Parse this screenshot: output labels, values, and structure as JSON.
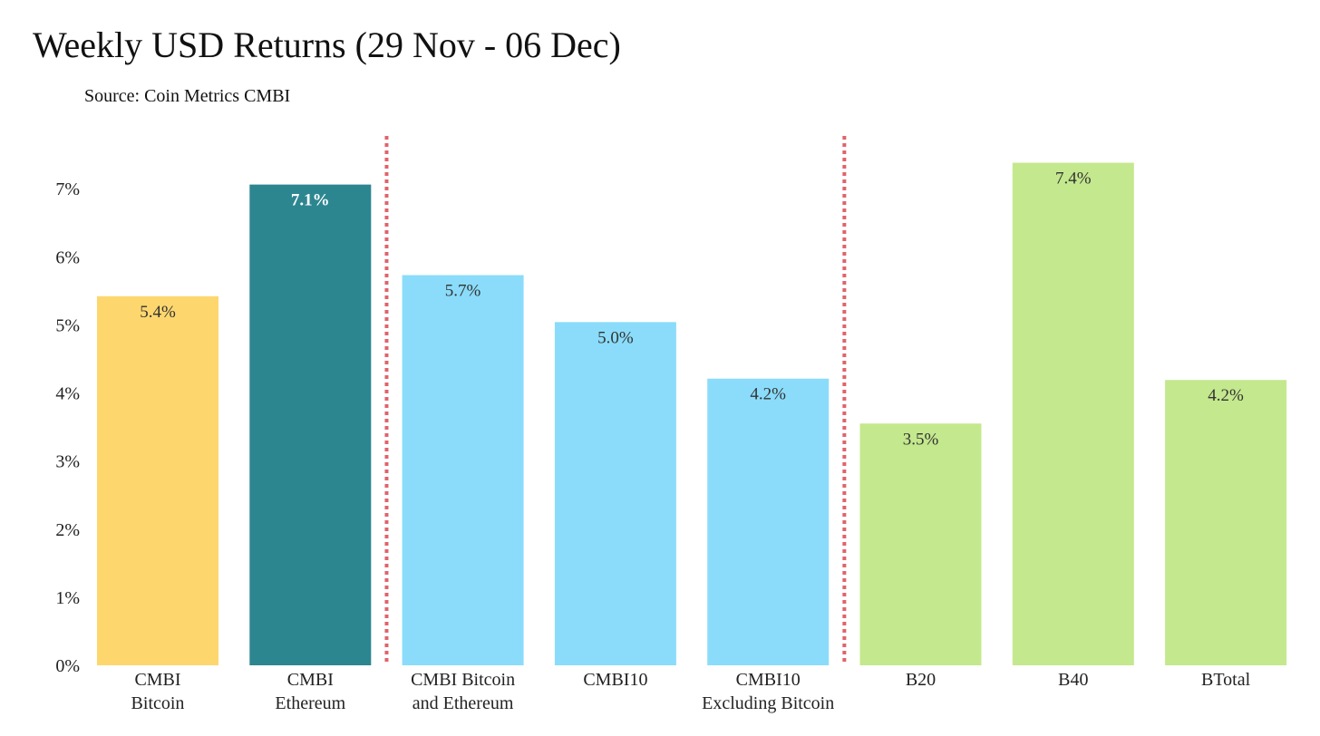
{
  "chart_data": {
    "type": "bar",
    "title": "Weekly USD Returns (29 Nov - 06 Dec)",
    "subtitle": "Source: Coin Metrics CMBI",
    "categories": [
      [
        "CMBI",
        "Bitcoin"
      ],
      [
        "CMBI",
        "Ethereum"
      ],
      [
        "CMBI Bitcoin",
        "and Ethereum"
      ],
      [
        "CMBI10"
      ],
      [
        "CMBI10",
        "Excluding Bitcoin"
      ],
      [
        "B20"
      ],
      [
        "B40"
      ],
      [
        "BTotal"
      ]
    ],
    "values": [
      5.42,
      7.06,
      5.73,
      5.04,
      4.21,
      3.55,
      7.38,
      4.19
    ],
    "data_labels": [
      "5.4%",
      "7.1%",
      "5.7%",
      "5.0%",
      "4.2%",
      "3.5%",
      "7.4%",
      "4.2%"
    ],
    "colors": [
      "#fdd76e",
      "#2c8690",
      "#8adcfa",
      "#8adcfa",
      "#8adcfa",
      "#c4e88d",
      "#c4e88d",
      "#c4e88d"
    ],
    "label_colors": [
      "#333333",
      "#ffffff",
      "#333333",
      "#333333",
      "#333333",
      "#333333",
      "#333333",
      "#333333"
    ],
    "ylim": [
      0,
      8
    ],
    "yticks": [
      0,
      1,
      2,
      3,
      4,
      5,
      6,
      7
    ],
    "ytick_labels": [
      "0%",
      "1%",
      "2%",
      "3%",
      "4%",
      "5%",
      "6%",
      "7%"
    ],
    "xlabel": "",
    "ylabel": "",
    "grid": false,
    "legend": "none",
    "group_separators": {
      "after_category_index": [
        1,
        4
      ],
      "style": "dotted",
      "color": "#e0636b"
    }
  }
}
